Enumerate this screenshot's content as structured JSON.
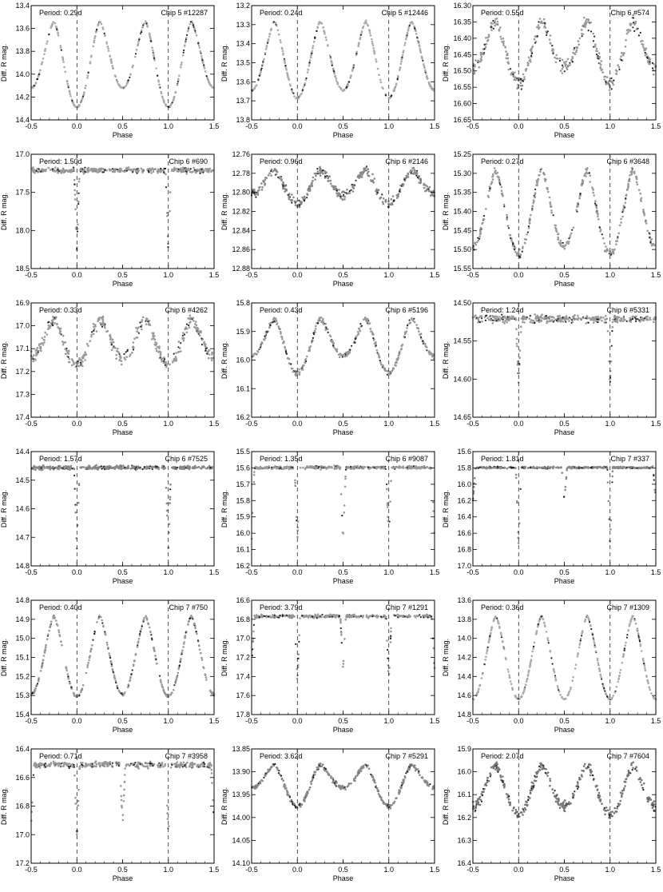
{
  "chart_data": [
    {
      "type": "scatter",
      "period": "Period: 0.29d",
      "id": "Chip 5 #12287",
      "xlabel": "Phase",
      "ylabel": "Diff. R mag.",
      "xlim": [
        -0.5,
        1.5
      ],
      "ylim": [
        14.4,
        13.4
      ],
      "yticks": [
        "13.4",
        "13.6",
        "13.8",
        "14.0",
        "14.2",
        "14.4"
      ],
      "shape": "ew",
      "depth1": 0.75,
      "depth2": 0.58,
      "scatter": 0.008,
      "color": "#aaaaaa"
    },
    {
      "type": "scatter",
      "period": "Period: 0.24d",
      "id": "Chip 5 #12446",
      "xlabel": "Phase",
      "ylabel": "Diff. R mag.",
      "xlim": [
        -0.5,
        1.5
      ],
      "ylim": [
        13.8,
        13.2
      ],
      "yticks": [
        "13.2",
        "13.3",
        "13.4",
        "13.5",
        "13.6",
        "13.7",
        "13.8"
      ],
      "shape": "ew",
      "depth1": 0.4,
      "depth2": 0.36,
      "scatter": 0.006,
      "color": "#aaaaaa"
    },
    {
      "type": "scatter",
      "period": "Period: 0.55d",
      "id": "Chip 6 #574",
      "xlabel": "Phase",
      "ylabel": "Diff. R mag.",
      "xlim": [
        -0.5,
        1.5
      ],
      "ylim": [
        16.65,
        16.3
      ],
      "yticks": [
        "16.30",
        "16.35",
        "16.40",
        "16.45",
        "16.50",
        "16.55",
        "16.60",
        "16.65"
      ],
      "shape": "ew",
      "depth1": 0.19,
      "depth2": 0.14,
      "scatter": 0.025,
      "color": "#999999"
    },
    {
      "type": "scatter",
      "period": "Period: 1.50d",
      "id": "Chip 6 #690",
      "xlabel": "Phase",
      "ylabel": "Diff. R mag.",
      "xlim": [
        -0.5,
        1.5
      ],
      "ylim": [
        18.5,
        17.0
      ],
      "yticks": [
        "17.0",
        "17.5",
        "18.0",
        "18.5"
      ],
      "shape": "ea",
      "depth1": 1.05,
      "depth2": 0.0,
      "scatter": 0.04,
      "color": "#999999"
    },
    {
      "type": "scatter",
      "period": "Period: 0.96d",
      "id": "Chip 6 #2146",
      "xlabel": "Phase",
      "ylabel": "Diff. R mag.",
      "xlim": [
        -0.5,
        1.5
      ],
      "ylim": [
        12.88,
        12.76
      ],
      "yticks": [
        "12.76",
        "12.78",
        "12.80",
        "12.82",
        "12.84",
        "12.86",
        "12.88"
      ],
      "shape": "ew",
      "depth1": 0.035,
      "depth2": 0.025,
      "scatter": 0.006,
      "color": "#888888"
    },
    {
      "type": "scatter",
      "period": "Period: 0.27d",
      "id": "Chip 6 #3648",
      "xlabel": "Phase",
      "ylabel": "Diff. R mag.",
      "xlim": [
        -0.5,
        1.5
      ],
      "ylim": [
        15.55,
        15.25
      ],
      "yticks": [
        "15.25",
        "15.30",
        "15.35",
        "15.40",
        "15.45",
        "15.50",
        "15.55"
      ],
      "shape": "ew",
      "depth1": 0.22,
      "depth2": 0.2,
      "scatter": 0.012,
      "color": "#999999"
    },
    {
      "type": "scatter",
      "period": "Period: 0.33d",
      "id": "Chip 6 #4262",
      "xlabel": "Phase",
      "ylabel": "Diff. R mag.",
      "xlim": [
        -0.5,
        1.5
      ],
      "ylim": [
        17.4,
        16.9
      ],
      "yticks": [
        "16.9",
        "17.0",
        "17.1",
        "17.2",
        "17.3",
        "17.4"
      ],
      "shape": "ew",
      "depth1": 0.2,
      "depth2": 0.17,
      "scatter": 0.035,
      "color": "#999999"
    },
    {
      "type": "scatter",
      "period": "Period: 0.43d",
      "id": "Chip 6 #5196",
      "xlabel": "Phase",
      "ylabel": "Diff. R mag.",
      "xlim": [
        -0.5,
        1.5
      ],
      "ylim": [
        16.2,
        15.8
      ],
      "yticks": [
        "15.8",
        "15.9",
        "16.0",
        "16.1",
        "16.2"
      ],
      "shape": "ew",
      "depth1": 0.19,
      "depth2": 0.13,
      "scatter": 0.012,
      "color": "#999999"
    },
    {
      "type": "scatter",
      "period": "Period: 1.24d",
      "id": "Chip 6 #5331",
      "xlabel": "Phase",
      "ylabel": "Diff. R mag.",
      "xlim": [
        -0.5,
        1.5
      ],
      "ylim": [
        14.65,
        14.5
      ],
      "yticks": [
        "14.50",
        "14.55",
        "14.60",
        "14.65"
      ],
      "shape": "ea",
      "depth1": 0.085,
      "depth2": 0.0,
      "scatter": 0.006,
      "color": "#999999"
    },
    {
      "type": "scatter",
      "period": "Period: 1.57d",
      "id": "Chip 6 #7525",
      "xlabel": "Phase",
      "ylabel": "Diff. R mag.",
      "xlim": [
        -0.5,
        1.5
      ],
      "ylim": [
        14.8,
        14.4
      ],
      "yticks": [
        "14.4",
        "14.5",
        "14.6",
        "14.7",
        "14.8"
      ],
      "shape": "ea",
      "depth1": 0.29,
      "depth2": 0.0,
      "scatter": 0.008,
      "color": "#888888"
    },
    {
      "type": "scatter",
      "period": "Period: 1.35d",
      "id": "Chip 6 #9087",
      "xlabel": "Phase",
      "ylabel": "Diff. R mag.",
      "xlim": [
        -0.5,
        1.5
      ],
      "ylim": [
        16.2,
        15.5
      ],
      "yticks": [
        "15.5",
        "15.6",
        "15.7",
        "15.8",
        "15.9",
        "16.0",
        "16.1",
        "16.2"
      ],
      "shape": "ea",
      "depth1": 0.45,
      "depth2": 0.45,
      "scatter": 0.012,
      "color": "#999999"
    },
    {
      "type": "scatter",
      "period": "Period: 1.81d",
      "id": "Chip 7 #337",
      "xlabel": "Phase",
      "ylabel": "Diff. R mag.",
      "xlim": [
        -0.5,
        1.5
      ],
      "ylim": [
        17.0,
        15.6
      ],
      "yticks": [
        "15.6",
        "15.8",
        "16.0",
        "16.2",
        "16.4",
        "16.6",
        "16.8",
        "17.0"
      ],
      "shape": "ea",
      "depth1": 0.95,
      "depth2": 0.4,
      "scatter": 0.015,
      "color": "#888888"
    },
    {
      "type": "scatter",
      "period": "Period: 0.40d",
      "id": "Chip 7 #750",
      "xlabel": "Phase",
      "ylabel": "Diff. R mag.",
      "xlim": [
        -0.5,
        1.5
      ],
      "ylim": [
        15.4,
        14.8
      ],
      "yticks": [
        "14.8",
        "14.9",
        "15.0",
        "15.1",
        "15.2",
        "15.3",
        "15.4"
      ],
      "shape": "ew",
      "depth1": 0.42,
      "depth2": 0.41,
      "scatter": 0.008,
      "color": "#999999"
    },
    {
      "type": "scatter",
      "period": "Period: 3.79d",
      "id": "Chip 7 #1291",
      "xlabel": "Phase",
      "ylabel": "Diff. R mag.",
      "xlim": [
        -0.5,
        1.5
      ],
      "ylim": [
        17.8,
        16.6
      ],
      "yticks": [
        "16.6",
        "16.8",
        "17.0",
        "17.2",
        "17.4",
        "17.6",
        "17.8"
      ],
      "shape": "ea",
      "depth1": 0.7,
      "depth2": 0.55,
      "scatter": 0.02,
      "color": "#999999"
    },
    {
      "type": "scatter",
      "period": "Period: 0.36d",
      "id": "Chip 7 #1309",
      "xlabel": "Phase",
      "ylabel": "Diff. R mag.",
      "xlim": [
        -0.5,
        1.5
      ],
      "ylim": [
        14.8,
        13.6
      ],
      "yticks": [
        "13.6",
        "13.8",
        "14.0",
        "14.2",
        "14.4",
        "14.6",
        "14.8"
      ],
      "shape": "ew",
      "depth1": 0.87,
      "depth2": 0.87,
      "scatter": 0.008,
      "color": "#aaaaaa"
    },
    {
      "type": "scatter",
      "period": "Period: 0.71d",
      "id": "Chip 7 #3958",
      "xlabel": "Phase",
      "ylabel": "Diff. R mag.",
      "xlim": [
        -0.5,
        1.5
      ],
      "ylim": [
        17.2,
        16.4
      ],
      "yticks": [
        "16.4",
        "16.6",
        "16.8",
        "17.0",
        "17.2"
      ],
      "shape": "ea",
      "depth1": 0.5,
      "depth2": 0.42,
      "scatter": 0.025,
      "color": "#999999"
    },
    {
      "type": "scatter",
      "period": "Period: 3.62d",
      "id": "Chip 7 #5291",
      "xlabel": "Phase",
      "ylabel": "Diff. R mag.",
      "xlim": [
        -0.5,
        1.5
      ],
      "ylim": [
        14.1,
        13.85
      ],
      "yticks": [
        "13.85",
        "13.90",
        "13.95",
        "14.00",
        "14.05",
        "14.10"
      ],
      "shape": "ew",
      "depth1": 0.09,
      "depth2": 0.05,
      "scatter": 0.006,
      "color": "#888888"
    },
    {
      "type": "scatter",
      "period": "Period: 2.07d",
      "id": "Chip 7 #7604",
      "xlabel": "Phase",
      "ylabel": "Diff. R mag.",
      "xlim": [
        -0.5,
        1.5
      ],
      "ylim": [
        16.4,
        15.9
      ],
      "yticks": [
        "15.9",
        "16.0",
        "16.1",
        "16.2",
        "16.3",
        "16.4"
      ],
      "shape": "ew",
      "depth1": 0.22,
      "depth2": 0.18,
      "scatter": 0.025,
      "color": "#777777"
    }
  ],
  "xticks": [
    "-0.5",
    "0.0",
    "0.5",
    "1.0",
    "1.5"
  ]
}
